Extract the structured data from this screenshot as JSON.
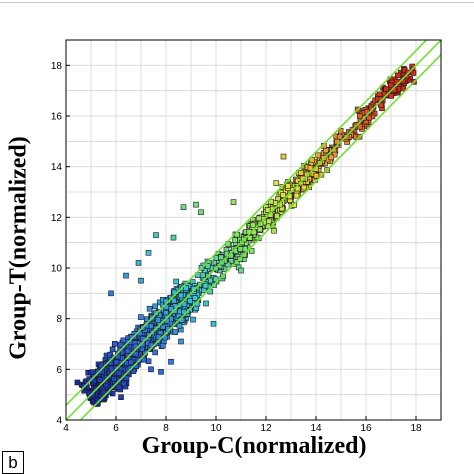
{
  "chart_data": {
    "type": "scatter",
    "title": "",
    "xlabel": "Group-C(normalized)",
    "ylabel": "Group-T(normalized)",
    "xlim": [
      4,
      19
    ],
    "ylim": [
      4,
      19
    ],
    "xticks": [
      4,
      6,
      8,
      10,
      12,
      14,
      16,
      18
    ],
    "yticks": [
      4,
      6,
      8,
      10,
      12,
      14,
      16,
      18
    ],
    "grid": true,
    "legend": "none",
    "colormap": [
      "#1a2aa8",
      "#2f6fe0",
      "#38c4d8",
      "#7ee070",
      "#e8e040",
      "#e88a30",
      "#d02a1a"
    ],
    "reference_lines": [
      {
        "name": "y = x",
        "slope": 1,
        "intercept": 0,
        "color": "#70e030"
      },
      {
        "name": "upper fold-change line",
        "slope": 1,
        "intercept": 0.58,
        "color": "#70e030"
      },
      {
        "name": "lower fold-change line",
        "slope": 1,
        "intercept": -0.58,
        "color": "#70e030"
      }
    ],
    "points_summary": {
      "count_drawn": 1400,
      "x_range": [
        4.6,
        17.9
      ],
      "trend": "points cluster tightly along y = x; dense blue region at 5–9, green/yellow at 10–13, orange/red at 14–17.5"
    },
    "outliers": [
      {
        "x": 6.4,
        "y": 9.7
      },
      {
        "x": 6.9,
        "y": 10.2
      },
      {
        "x": 7.3,
        "y": 10.6
      },
      {
        "x": 7.6,
        "y": 11.3
      },
      {
        "x": 8.3,
        "y": 11.2
      },
      {
        "x": 8.7,
        "y": 12.4
      },
      {
        "x": 9.2,
        "y": 12.5
      },
      {
        "x": 9.4,
        "y": 12.2
      },
      {
        "x": 5.8,
        "y": 9.0
      },
      {
        "x": 7.0,
        "y": 9.5
      },
      {
        "x": 7.4,
        "y": 6.0
      },
      {
        "x": 8.2,
        "y": 6.3
      },
      {
        "x": 8.6,
        "y": 7.1
      },
      {
        "x": 9.9,
        "y": 7.8
      },
      {
        "x": 9.6,
        "y": 8.6
      },
      {
        "x": 7.8,
        "y": 5.9
      },
      {
        "x": 6.2,
        "y": 4.9
      },
      {
        "x": 11.0,
        "y": 9.9
      },
      {
        "x": 12.7,
        "y": 14.4
      },
      {
        "x": 10.7,
        "y": 12.6
      }
    ]
  },
  "panel_label": "b"
}
